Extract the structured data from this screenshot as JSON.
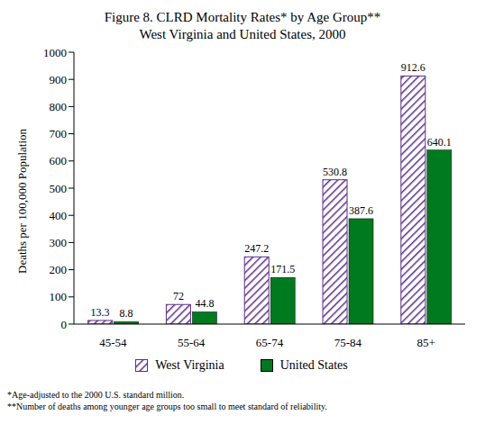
{
  "chart_data": {
    "type": "bar",
    "title": "Figure 8.  CLRD Mortality Rates* by Age Group**",
    "subtitle": "West Virginia and United States, 2000",
    "y_label": "Deaths per 100,000 Population",
    "categories": [
      "45-54",
      "55-64",
      "65-74",
      "75-84",
      "85+"
    ],
    "series": [
      {
        "name": "West Virginia",
        "color": "#5a2d8c",
        "values": [
          13.3,
          72,
          247.2,
          530.8,
          912.6
        ]
      },
      {
        "name": "United States",
        "color": "#007a1e",
        "values": [
          8.8,
          44.8,
          171.5,
          387.6,
          640.1
        ]
      }
    ],
    "ylim": [
      0,
      1000
    ],
    "yticks": [
      0,
      100,
      200,
      300,
      400,
      500,
      600,
      700,
      800,
      900,
      1000
    ],
    "grid": false,
    "legend": "bottom",
    "data_labels": true,
    "annotations": [
      "*Age-adjusted to the 2000 U.S. standard million.",
      "**Number of deaths among younger age groups too small to meet standard of reliability."
    ]
  }
}
